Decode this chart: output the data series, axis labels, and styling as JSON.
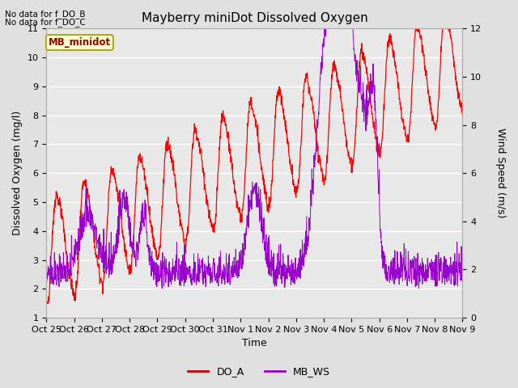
{
  "title": "Mayberry miniDot Dissolved Oxygen",
  "xlabel": "Time",
  "ylabel_left": "Dissolved Oxygen (mg/l)",
  "ylabel_right": "Wind Speed (m/s)",
  "text_no_data_1": "No data for f_DO_B",
  "text_no_data_2": "No data for f_DO_C",
  "legend_box_label": "MB_minidot",
  "ylim_left": [
    1.0,
    11.0
  ],
  "ylim_right": [
    0,
    12
  ],
  "yticks_left": [
    1.0,
    2.0,
    3.0,
    4.0,
    5.0,
    6.0,
    7.0,
    8.0,
    9.0,
    10.0,
    11.0
  ],
  "yticks_right": [
    0,
    2,
    4,
    6,
    8,
    10,
    12
  ],
  "xtick_labels": [
    "Oct 25",
    "Oct 26",
    "Oct 27",
    "Oct 28",
    "Oct 29",
    "Oct 30",
    "Oct 31",
    "Nov 1",
    "Nov 2",
    "Nov 3",
    "Nov 4",
    "Nov 5",
    "Nov 6",
    "Nov 7",
    "Nov 8",
    "Nov 9"
  ],
  "fig_bg_color": "#e0e0e0",
  "plot_bg_color": "#e8e8e8",
  "DO_A_color": "#ff0000",
  "MB_WS_color": "#9900cc",
  "legend_DO_A_color": "#cc0000",
  "legend_MB_WS_color": "#9900cc",
  "grid_color": "#ffffff",
  "legend_box_facecolor": "#ffffcc",
  "legend_box_edgecolor": "#999900",
  "legend_box_text_color": "#990000",
  "tick_fontsize": 8,
  "label_fontsize": 9,
  "title_fontsize": 11
}
